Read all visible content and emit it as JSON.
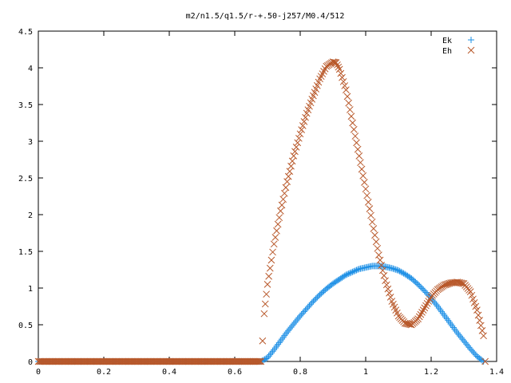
{
  "chart_data": {
    "type": "scatter",
    "title": "m2/n1.5/q1.5/r-+.50-j257/M0.4/512",
    "xlabel": "",
    "ylabel": "",
    "xlim": [
      0,
      1.4
    ],
    "ylim": [
      0,
      4.5
    ],
    "xticks": [
      "0",
      "0.2",
      "0.4",
      "0.6",
      "0.8",
      "1",
      "1.2",
      "1.4"
    ],
    "yticks": [
      "0",
      "0.5",
      "1",
      "1.5",
      "2",
      "2.5",
      "3",
      "3.5",
      "4",
      "4.5"
    ],
    "grid": false,
    "legend_position": "top-right",
    "series": [
      {
        "name": "Ek",
        "marker": "plus",
        "color": "#1e90e6",
        "points": [
          [
            0.0,
            0.0
          ],
          [
            0.3,
            0.0
          ],
          [
            0.6,
            0.0
          ],
          [
            0.68,
            0.0
          ],
          [
            0.7,
            0.05
          ],
          [
            0.72,
            0.16
          ],
          [
            0.74,
            0.28
          ],
          [
            0.76,
            0.4
          ],
          [
            0.78,
            0.51
          ],
          [
            0.8,
            0.62
          ],
          [
            0.82,
            0.72
          ],
          [
            0.84,
            0.82
          ],
          [
            0.86,
            0.91
          ],
          [
            0.88,
            0.99
          ],
          [
            0.9,
            1.06
          ],
          [
            0.92,
            1.12
          ],
          [
            0.94,
            1.18
          ],
          [
            0.96,
            1.22
          ],
          [
            0.98,
            1.26
          ],
          [
            1.0,
            1.28
          ],
          [
            1.02,
            1.3
          ],
          [
            1.04,
            1.3
          ],
          [
            1.06,
            1.29
          ],
          [
            1.08,
            1.27
          ],
          [
            1.1,
            1.24
          ],
          [
            1.12,
            1.19
          ],
          [
            1.14,
            1.13
          ],
          [
            1.16,
            1.05
          ],
          [
            1.18,
            0.96
          ],
          [
            1.2,
            0.86
          ],
          [
            1.22,
            0.75
          ],
          [
            1.24,
            0.63
          ],
          [
            1.26,
            0.51
          ],
          [
            1.28,
            0.39
          ],
          [
            1.3,
            0.28
          ],
          [
            1.32,
            0.17
          ],
          [
            1.34,
            0.07
          ],
          [
            1.36,
            0.0
          ]
        ]
      },
      {
        "name": "Eh",
        "marker": "cross",
        "color": "#b8582a",
        "points": [
          [
            0.0,
            0.0
          ],
          [
            0.3,
            0.0
          ],
          [
            0.6,
            0.0
          ],
          [
            0.68,
            0.0
          ],
          [
            0.685,
            0.28
          ],
          [
            0.69,
            0.65
          ],
          [
            0.7,
            1.05
          ],
          [
            0.72,
            1.6
          ],
          [
            0.74,
            2.05
          ],
          [
            0.76,
            2.45
          ],
          [
            0.78,
            2.8
          ],
          [
            0.8,
            3.1
          ],
          [
            0.82,
            3.38
          ],
          [
            0.84,
            3.62
          ],
          [
            0.86,
            3.85
          ],
          [
            0.88,
            4.02
          ],
          [
            0.9,
            4.08
          ],
          [
            0.91,
            4.07
          ],
          [
            0.92,
            3.98
          ],
          [
            0.94,
            3.7
          ],
          [
            0.96,
            3.25
          ],
          [
            0.98,
            2.8
          ],
          [
            1.0,
            2.35
          ],
          [
            1.02,
            1.9
          ],
          [
            1.04,
            1.45
          ],
          [
            1.06,
            1.1
          ],
          [
            1.08,
            0.82
          ],
          [
            1.1,
            0.62
          ],
          [
            1.12,
            0.52
          ],
          [
            1.14,
            0.5
          ],
          [
            1.16,
            0.58
          ],
          [
            1.18,
            0.73
          ],
          [
            1.2,
            0.88
          ],
          [
            1.22,
            0.98
          ],
          [
            1.24,
            1.04
          ],
          [
            1.26,
            1.07
          ],
          [
            1.28,
            1.08
          ],
          [
            1.3,
            1.06
          ],
          [
            1.32,
            0.95
          ],
          [
            1.34,
            0.7
          ],
          [
            1.36,
            0.35
          ],
          [
            1.365,
            0.0
          ]
        ]
      }
    ]
  }
}
